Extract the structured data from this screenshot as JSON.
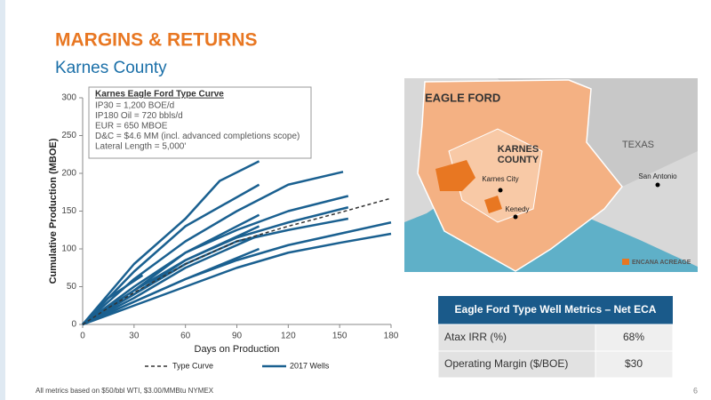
{
  "header": {
    "title": "MARGINS & RETURNS",
    "subtitle": "Karnes County"
  },
  "chart_data": {
    "type": "line",
    "xlabel": "Days on Production",
    "ylabel": "Cumulative Production (MBOE)",
    "xlim": [
      0,
      180
    ],
    "xticks": [
      0,
      30,
      60,
      90,
      120,
      150,
      180
    ],
    "ylim": [
      0,
      300
    ],
    "yticks": [
      0,
      50,
      100,
      150,
      200,
      250,
      300
    ],
    "annotation": {
      "title": "Karnes Eagle Ford Type Curve",
      "lines": [
        "IP30 = 1,200 BOE/d",
        "IP180 Oil = 720 bbls/d",
        "EUR = 650 MBOE",
        "D&C = $4.6 MM  (incl. advanced completions scope)",
        "Lateral Length = 5,000'"
      ]
    },
    "series": [
      {
        "name": "Type Curve",
        "color": "#333333",
        "dashed": true,
        "x": [
          0,
          15,
          30,
          60,
          90,
          120,
          150,
          180
        ],
        "values": [
          0,
          22,
          42,
          80,
          110,
          130,
          148,
          167
        ]
      },
      {
        "name": "2017 Wells",
        "color": "#1a6090",
        "wells": [
          {
            "x": [
              0,
              15,
              30,
              60,
              80,
              103
            ],
            "values": [
              0,
              40,
              80,
              140,
              190,
              216
            ]
          },
          {
            "x": [
              0,
              30,
              60,
              103
            ],
            "values": [
              0,
              70,
              130,
              185
            ]
          },
          {
            "x": [
              0,
              30,
              60,
              90,
              120,
              152
            ],
            "values": [
              0,
              60,
              110,
              150,
              185,
              202
            ]
          },
          {
            "x": [
              0,
              30,
              60,
              90,
              120,
              155
            ],
            "values": [
              0,
              50,
              95,
              125,
              150,
              170
            ]
          },
          {
            "x": [
              0,
              30,
              60,
              90,
              120,
              155
            ],
            "values": [
              0,
              45,
              85,
              115,
              135,
              155
            ]
          },
          {
            "x": [
              0,
              30,
              60,
              103
            ],
            "values": [
              0,
              45,
              95,
              145
            ]
          },
          {
            "x": [
              0,
              30,
              60,
              103
            ],
            "values": [
              0,
              40,
              85,
              130
            ]
          },
          {
            "x": [
              0,
              30,
              60,
              90,
              120,
              155
            ],
            "values": [
              0,
              40,
              80,
              110,
              125,
              140
            ]
          },
          {
            "x": [
              0,
              30,
              60,
              103
            ],
            "values": [
              0,
              35,
              75,
              118
            ]
          },
          {
            "x": [
              0,
              30,
              60,
              90,
              120,
              150,
              180
            ],
            "values": [
              0,
              30,
              60,
              85,
              105,
              120,
              135
            ]
          },
          {
            "x": [
              0,
              30,
              60,
              90,
              120,
              150,
              180
            ],
            "values": [
              0,
              25,
              50,
              75,
              95,
              108,
              120
            ]
          },
          {
            "x": [
              0,
              30,
              60,
              103
            ],
            "values": [
              0,
              30,
              60,
              100
            ]
          },
          {
            "x": [
              0,
              15,
              35
            ],
            "values": [
              0,
              35,
              65
            ]
          }
        ]
      }
    ]
  },
  "map": {
    "labels": [
      "EAGLE FORD",
      "KARNES",
      "COUNTY",
      "Karnes City",
      "Kenedy",
      "TEXAS",
      "San Antonio",
      "ENCANA ACREAGE"
    ]
  },
  "table": {
    "header": "Eagle Ford Type Well Metrics – Net ECA",
    "rows": [
      [
        "Atax IRR (%)",
        "68%"
      ],
      [
        "Operating Margin ($/BOE)",
        "$30"
      ]
    ]
  },
  "footer": {
    "note": "All metrics based on $50/bbl WTI, $3.00/MMBtu NYMEX",
    "page": "6"
  }
}
